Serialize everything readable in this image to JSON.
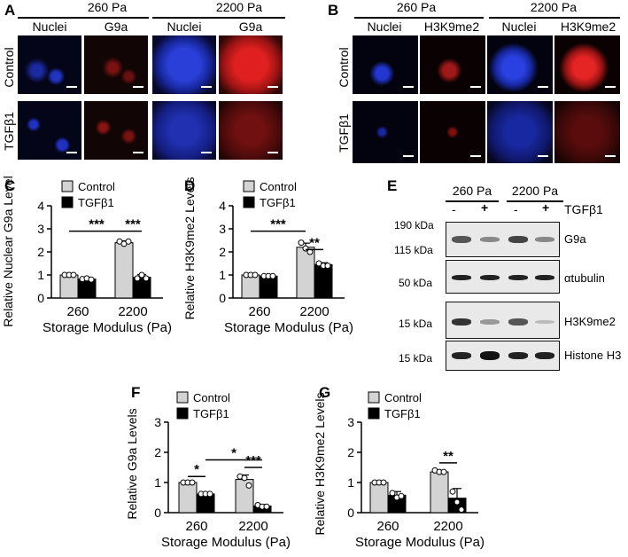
{
  "panel_letters": {
    "A": "A",
    "B": "B",
    "C": "C",
    "D": "D",
    "E": "E",
    "F": "F",
    "G": "G"
  },
  "panel_a": {
    "groups": [
      "260 Pa",
      "2200 Pa"
    ],
    "stains": [
      "Nuclei",
      "G9a",
      "Nuclei",
      "G9a"
    ],
    "rows": [
      "Control",
      "TGFβ1"
    ]
  },
  "panel_b": {
    "groups": [
      "260 Pa",
      "2200 Pa"
    ],
    "stains": [
      "Nuclei",
      "H3K9me2",
      "Nuclei",
      "H3K9me2"
    ],
    "rows": [
      "Control",
      "TGFβ1"
    ]
  },
  "panel_e": {
    "groups": [
      "260 Pa",
      "2200 Pa"
    ],
    "lane_signs": [
      "-",
      "+",
      "-",
      "+"
    ],
    "treatment": "TGFβ1",
    "markers": [
      "190 kDa",
      "115 kDa",
      "50 kDa",
      "15 kDa",
      "15 kDa"
    ],
    "proteins": [
      "G9a",
      "αtubulin",
      "H3K9me2",
      "Histone H3"
    ]
  },
  "colors": {
    "control": "#d3d3d3",
    "tgfb1": "#000000",
    "nuclei": "#2a3fd8",
    "stain": "#d41e1e"
  },
  "chart_data": [
    {
      "panel": "C",
      "type": "bar",
      "categories": [
        "260",
        "2200"
      ],
      "series": [
        {
          "name": "Control",
          "values": [
            1.0,
            2.4
          ]
        },
        {
          "name": "TGFβ1",
          "values": [
            0.82,
            0.9
          ]
        }
      ],
      "errors": [
        [
          0.02,
          0.08
        ],
        [
          0.04,
          0.12
        ]
      ],
      "points": [
        [
          [
            1.0,
            1.0,
            1.0
          ],
          [
            2.45,
            2.35,
            2.45
          ]
        ],
        [
          [
            0.82,
            0.85,
            0.8
          ],
          [
            0.85,
            1.0,
            0.85
          ]
        ]
      ],
      "ylabel": "Relative Nuclear G9a Levels",
      "xlabel": "Storage Modulus (Pa)",
      "yticks": [
        "0",
        "1",
        "2",
        "3",
        "4"
      ],
      "ylim": [
        0,
        4
      ],
      "legend": [
        "Control",
        "TGFβ1"
      ],
      "brackets": [
        {
          "x1": 0,
          "x2": 1,
          "y": 2.9,
          "text": "***",
          "from_series": [
            0,
            0
          ]
        },
        {
          "x1": 1,
          "x2": 1,
          "y": 2.9,
          "text": "***",
          "from_series": [
            0,
            1
          ]
        }
      ]
    },
    {
      "panel": "D",
      "type": "bar",
      "categories": [
        "260",
        "2200"
      ],
      "series": [
        {
          "name": "Control",
          "values": [
            1.0,
            2.2
          ]
        },
        {
          "name": "TGFβ1",
          "values": [
            0.95,
            1.45
          ]
        }
      ],
      "errors": [
        [
          0.02,
          0.18
        ],
        [
          0.03,
          0.08
        ]
      ],
      "points": [
        [
          [
            1.0,
            1.0,
            1.0
          ],
          [
            2.4,
            2.15,
            2.0
          ]
        ],
        [
          [
            0.95,
            0.95,
            0.95
          ],
          [
            1.5,
            1.4,
            1.4
          ]
        ]
      ],
      "ylabel": "Relative H3K9me2 Levels",
      "xlabel": "Storage Modulus (Pa)",
      "yticks": [
        "0",
        "1",
        "2",
        "3",
        "4"
      ],
      "ylim": [
        0,
        4
      ],
      "legend": [
        "Control",
        "TGFβ1"
      ],
      "brackets": [
        {
          "x1": 0,
          "x2": 1,
          "y": 2.9,
          "text": "***",
          "from_series": [
            0,
            0
          ]
        },
        {
          "x1": 1,
          "x2": 1,
          "y": 2.1,
          "text": "**",
          "from_series": [
            0,
            1
          ]
        }
      ]
    },
    {
      "panel": "F",
      "type": "bar",
      "categories": [
        "260",
        "2200"
      ],
      "series": [
        {
          "name": "Control",
          "values": [
            1.0,
            1.1
          ]
        },
        {
          "name": "TGFβ1",
          "values": [
            0.62,
            0.22
          ]
        }
      ],
      "errors": [
        [
          0.02,
          0.15
        ],
        [
          0.03,
          0.05
        ]
      ],
      "points": [
        [
          [
            1.0,
            1.0,
            1.0
          ],
          [
            1.2,
            1.15,
            0.9
          ]
        ],
        [
          [
            0.62,
            0.62,
            0.62
          ],
          [
            0.25,
            0.2,
            0.2
          ]
        ]
      ],
      "ylabel": "Relative G9a Levels",
      "xlabel": "Storage Modulus (Pa)",
      "yticks": [
        "0",
        "1",
        "2",
        "3"
      ],
      "ylim": [
        0,
        3
      ],
      "legend": [
        "Control",
        "TGFβ1"
      ],
      "brackets": [
        {
          "x1": 0,
          "x2": 0,
          "y": 1.2,
          "text": "*",
          "from_series": [
            0,
            1
          ]
        },
        {
          "x1": 0,
          "x2": 1,
          "y": 1.75,
          "text": "*",
          "from_series": [
            1,
            1
          ]
        },
        {
          "x1": 1,
          "x2": 1,
          "y": 1.5,
          "text": "***",
          "from_series": [
            0,
            1
          ]
        }
      ]
    },
    {
      "panel": "G",
      "type": "bar",
      "categories": [
        "260",
        "2200"
      ],
      "series": [
        {
          "name": "Control",
          "values": [
            1.0,
            1.35
          ]
        },
        {
          "name": "TGFβ1",
          "values": [
            0.58,
            0.48
          ]
        }
      ],
      "errors": [
        [
          0.02,
          0.05
        ],
        [
          0.12,
          0.32
        ]
      ],
      "points": [
        [
          [
            1.0,
            1.0,
            1.0
          ],
          [
            1.4,
            1.35,
            1.35
          ]
        ],
        [
          [
            0.65,
            0.5,
            0.55
          ],
          [
            0.7,
            0.35,
            0.1
          ]
        ]
      ],
      "ylabel": "Relative H3K9me2 Levels",
      "xlabel": "Storage Modulus (Pa)",
      "yticks": [
        "0",
        "1",
        "2",
        "3"
      ],
      "ylim": [
        0,
        3
      ],
      "legend": [
        "Control",
        "TGFβ1"
      ],
      "brackets": [
        {
          "x1": 1,
          "x2": 1,
          "y": 1.65,
          "text": "**",
          "from_series": [
            0,
            1
          ]
        }
      ]
    }
  ]
}
